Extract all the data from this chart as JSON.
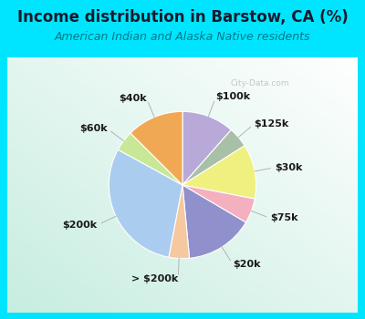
{
  "title": "Income distribution in Barstow, CA (%)",
  "subtitle": "American Indian and Alaska Native residents",
  "watermark": "© City-Data.com",
  "background_color": "#00e5ff",
  "labels": [
    "$100k",
    "$125k",
    "$30k",
    "$75k",
    "$20k",
    "> $200k",
    "$200k",
    "$60k",
    "$40k"
  ],
  "values": [
    11.5,
    4.5,
    12.0,
    5.5,
    15.0,
    4.5,
    30.0,
    4.5,
    12.5
  ],
  "colors": [
    "#b8a9d9",
    "#a8bfa8",
    "#f0f080",
    "#f4b0be",
    "#9090cc",
    "#f5c8a0",
    "#aaccee",
    "#c8e898",
    "#f0a855"
  ],
  "title_fontsize": 12,
  "subtitle_fontsize": 9,
  "label_fontsize": 8,
  "startangle": 90,
  "label_distance": 1.28
}
